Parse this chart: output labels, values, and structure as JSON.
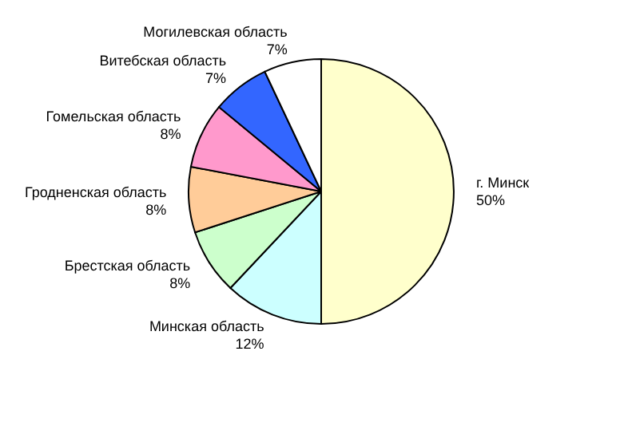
{
  "chart_data": {
    "type": "pie",
    "categories": [
      "г. Минск",
      "Минская область",
      "Брестская область",
      "Гродненская область",
      "Гомельская область",
      "Витебская область",
      "Могилевская область"
    ],
    "values": [
      50,
      12,
      8,
      8,
      8,
      7,
      7
    ],
    "value_labels": [
      "50%",
      "12%",
      "8%",
      "8%",
      "8%",
      "7%",
      "7%"
    ],
    "colors": [
      "#ffffcc",
      "#ccffff",
      "#ccffcc",
      "#ffcc99",
      "#ff99cc",
      "#3366ff",
      "#ffffff"
    ],
    "legend": false
  }
}
